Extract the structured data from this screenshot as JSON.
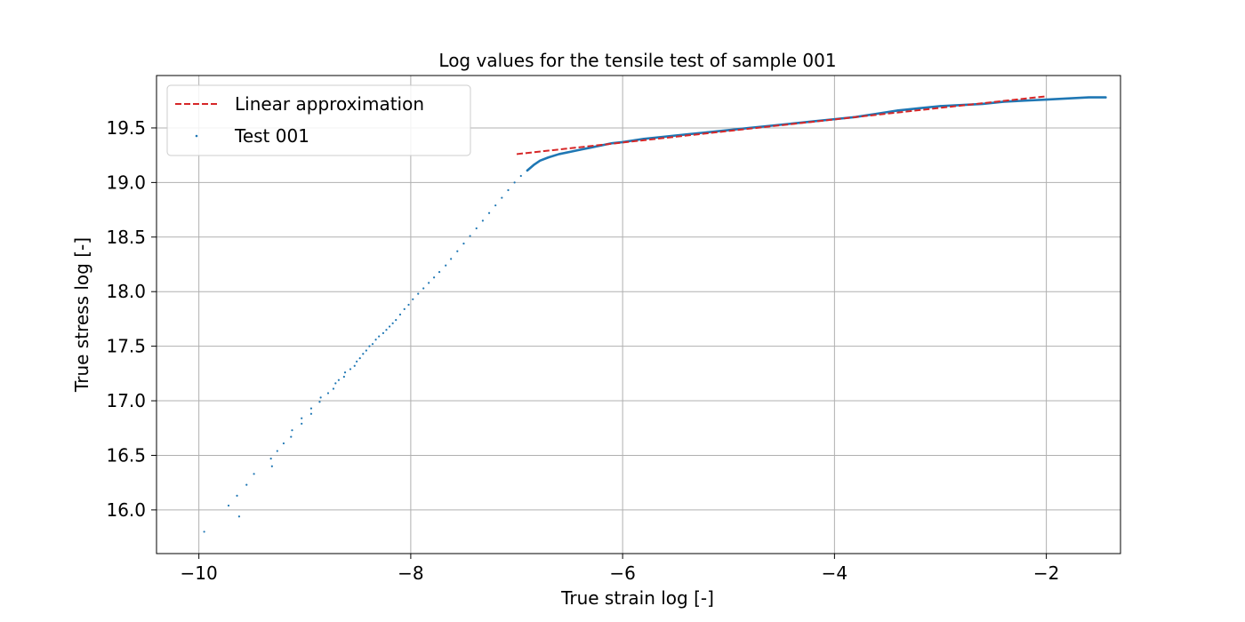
{
  "chart_data": {
    "type": "scatter",
    "title": "Log values for the tensile test of sample 001",
    "xlabel": "True strain log [-]",
    "ylabel": "True stress log [-]",
    "xlim": [
      -10.4,
      -1.3
    ],
    "ylim": [
      15.6,
      19.98
    ],
    "xticks": [
      -10,
      -8,
      -6,
      -4,
      -2
    ],
    "xtick_labels": [
      "−10",
      "−8",
      "−6",
      "−4",
      "−2"
    ],
    "yticks": [
      16.0,
      16.5,
      17.0,
      17.5,
      18.0,
      18.5,
      19.0,
      19.5
    ],
    "ytick_labels": [
      "16.0",
      "16.5",
      "17.0",
      "17.5",
      "18.0",
      "18.5",
      "19.0",
      "19.5"
    ],
    "grid": true,
    "legend_position": "top-left",
    "colors": {
      "test": "#1f77b4",
      "linear": "#d62728"
    },
    "series": [
      {
        "name": "Linear approximation",
        "style": "dashed-line",
        "color": "#d62728",
        "x": [
          -7.0,
          -2.0
        ],
        "y": [
          19.26,
          19.79
        ]
      },
      {
        "name": "Test 001",
        "style": "points",
        "color": "#1f77b4",
        "points": [
          [
            -9.95,
            15.8
          ],
          [
            -9.72,
            16.04
          ],
          [
            -9.64,
            16.13
          ],
          [
            -9.62,
            15.94
          ],
          [
            -9.55,
            16.23
          ],
          [
            -9.48,
            16.33
          ],
          [
            -9.32,
            16.47
          ],
          [
            -9.31,
            16.4
          ],
          [
            -9.26,
            16.54
          ],
          [
            -9.2,
            16.61
          ],
          [
            -9.13,
            16.67
          ],
          [
            -9.12,
            16.73
          ],
          [
            -9.03,
            16.79
          ],
          [
            -9.03,
            16.84
          ],
          [
            -8.94,
            16.88
          ],
          [
            -8.94,
            16.93
          ],
          [
            -8.86,
            16.99
          ],
          [
            -8.85,
            17.03
          ],
          [
            -8.78,
            17.07
          ],
          [
            -8.73,
            17.11
          ],
          [
            -8.71,
            17.16
          ],
          [
            -8.68,
            17.19
          ],
          [
            -8.63,
            17.22
          ],
          [
            -8.62,
            17.26
          ],
          [
            -8.57,
            17.29
          ],
          [
            -8.53,
            17.32
          ],
          [
            -8.51,
            17.36
          ],
          [
            -8.48,
            17.39
          ],
          [
            -8.45,
            17.43
          ],
          [
            -8.42,
            17.46
          ],
          [
            -8.39,
            17.5
          ],
          [
            -8.36,
            17.52
          ],
          [
            -8.33,
            17.56
          ],
          [
            -8.3,
            17.59
          ],
          [
            -8.26,
            17.62
          ],
          [
            -8.23,
            17.65
          ],
          [
            -8.2,
            17.68
          ],
          [
            -8.17,
            17.71
          ],
          [
            -8.14,
            17.74
          ],
          [
            -8.1,
            17.79
          ],
          [
            -8.06,
            17.84
          ],
          [
            -8.02,
            17.88
          ],
          [
            -7.98,
            17.93
          ],
          [
            -7.93,
            17.98
          ],
          [
            -7.88,
            18.03
          ],
          [
            -7.83,
            18.08
          ],
          [
            -7.78,
            18.13
          ],
          [
            -7.73,
            18.18
          ],
          [
            -7.67,
            18.24
          ],
          [
            -7.62,
            18.3
          ],
          [
            -7.56,
            18.37
          ],
          [
            -7.5,
            18.44
          ],
          [
            -7.44,
            18.51
          ],
          [
            -7.38,
            18.58
          ],
          [
            -7.32,
            18.65
          ],
          [
            -7.26,
            18.72
          ],
          [
            -7.2,
            18.79
          ],
          [
            -7.14,
            18.86
          ],
          [
            -7.08,
            18.93
          ],
          [
            -7.02,
            19.0
          ],
          [
            -6.96,
            19.06
          ],
          [
            -6.9,
            19.11
          ],
          [
            -6.84,
            19.16
          ],
          [
            -6.78,
            19.2
          ],
          [
            -6.7,
            19.23
          ],
          [
            -6.6,
            19.26
          ],
          [
            -6.5,
            19.28
          ],
          [
            -6.4,
            19.3
          ],
          [
            -6.3,
            19.32
          ],
          [
            -6.2,
            19.34
          ],
          [
            -6.1,
            19.36
          ],
          [
            -6.0,
            19.37
          ],
          [
            -5.8,
            19.4
          ],
          [
            -5.6,
            19.42
          ],
          [
            -5.4,
            19.44
          ],
          [
            -5.2,
            19.46
          ],
          [
            -5.0,
            19.48
          ],
          [
            -4.8,
            19.5
          ],
          [
            -4.6,
            19.52
          ],
          [
            -4.4,
            19.54
          ],
          [
            -4.2,
            19.56
          ],
          [
            -4.0,
            19.58
          ],
          [
            -3.8,
            19.6
          ],
          [
            -3.6,
            19.63
          ],
          [
            -3.4,
            19.66
          ],
          [
            -3.2,
            19.68
          ],
          [
            -3.0,
            19.7
          ],
          [
            -2.8,
            19.71
          ],
          [
            -2.6,
            19.72
          ],
          [
            -2.4,
            19.74
          ],
          [
            -2.2,
            19.75
          ],
          [
            -2.0,
            19.76
          ],
          [
            -1.8,
            19.77
          ],
          [
            -1.6,
            19.78
          ],
          [
            -1.44,
            19.78
          ]
        ]
      }
    ]
  }
}
